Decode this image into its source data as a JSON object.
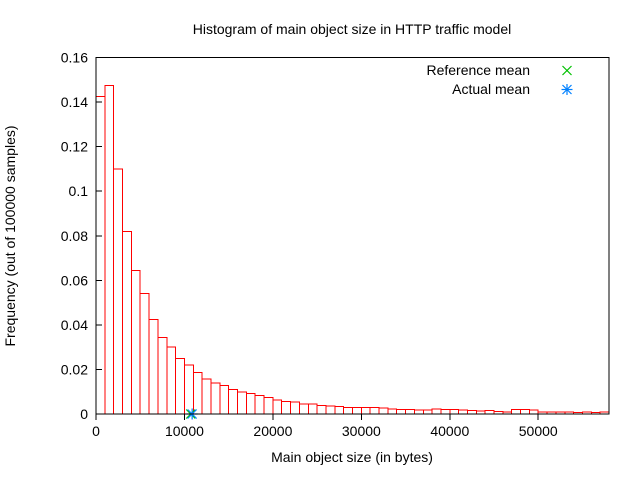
{
  "chart_data": {
    "type": "bar",
    "title": "Histogram of main object size in HTTP traffic model",
    "xlabel": "Main object size (in bytes)",
    "ylabel": "Frequency (out of 100000 samples)",
    "xlim": [
      0,
      58000
    ],
    "ylim": [
      0,
      0.16
    ],
    "grid": false,
    "legend_position": "top-right-inside",
    "xticks": {
      "values": [
        0,
        10000,
        20000,
        30000,
        40000,
        50000
      ],
      "labels": [
        "0",
        "10000",
        "20000",
        "30000",
        "40000",
        "50000"
      ]
    },
    "yticks": {
      "values": [
        0,
        0.02,
        0.04,
        0.06,
        0.08,
        0.1,
        0.12,
        0.14,
        0.16
      ],
      "labels": [
        "0",
        "0.02",
        "0.04",
        "0.06",
        "0.08",
        "0.1",
        "0.12",
        "0.14",
        "0.16"
      ]
    },
    "histogram": {
      "bin_start": 0,
      "bin_width": 1000,
      "bar_color": "#ff0000",
      "frequencies": [
        0.1425,
        0.1475,
        0.11,
        0.082,
        0.0645,
        0.054,
        0.0425,
        0.0344,
        0.0301,
        0.0248,
        0.022,
        0.0187,
        0.0158,
        0.0139,
        0.0128,
        0.011,
        0.0098,
        0.0092,
        0.0082,
        0.0074,
        0.0062,
        0.0056,
        0.0055,
        0.0045,
        0.0044,
        0.0038,
        0.0035,
        0.0033,
        0.003,
        0.0029,
        0.0029,
        0.0029,
        0.0028,
        0.0023,
        0.0021,
        0.002,
        0.0019,
        0.0018,
        0.0022,
        0.002,
        0.0021,
        0.0018,
        0.0015,
        0.0013,
        0.0015,
        0.0012,
        0.0008,
        0.002,
        0.0021,
        0.0019,
        0.0009,
        0.0008,
        0.0008,
        0.0008,
        0.0007,
        0.0008,
        0.0007,
        0.0008
      ]
    },
    "markers": [
      {
        "label": "Reference mean",
        "x": 10710,
        "y": 0,
        "shape": "cross",
        "color": "#00c000"
      },
      {
        "label": "Actual mean",
        "x": 10870,
        "y": 0,
        "shape": "asterisk",
        "color": "#0080ff"
      }
    ]
  },
  "colors": {
    "axis": "#000000",
    "background": "#ffffff",
    "bars": "#ff0000",
    "reference_mean": "#00c000",
    "actual_mean": "#0080ff"
  }
}
